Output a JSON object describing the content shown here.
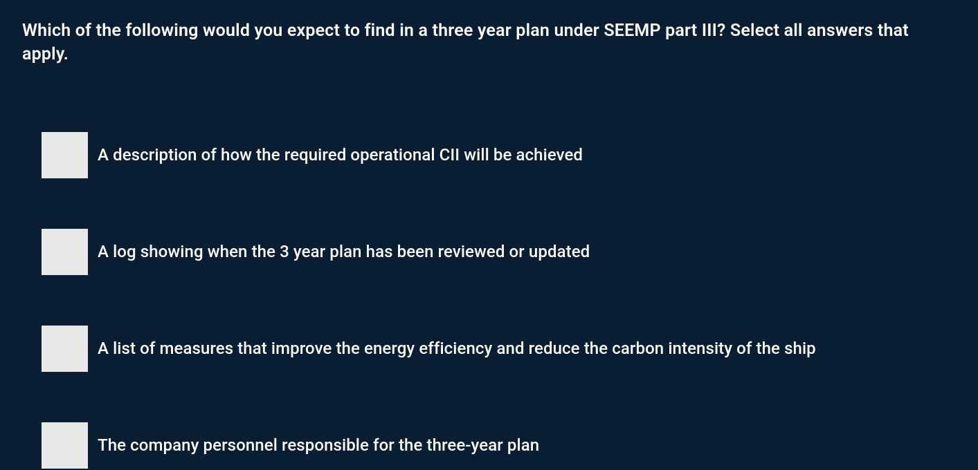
{
  "question": {
    "text": "Which of the following would you expect to find in a three year plan under SEEMP part III? Select all answers that apply."
  },
  "options": [
    {
      "label": "A description of how the required operational CII will be achieved",
      "checked": false
    },
    {
      "label": "A log showing when the 3 year plan has been reviewed or updated",
      "checked": false
    },
    {
      "label": "A list of measures that improve the energy efficiency and reduce the carbon intensity of the ship",
      "checked": false
    },
    {
      "label": "The company personnel responsible for the three-year plan",
      "checked": false
    }
  ],
  "colors": {
    "background": "#0a1e33",
    "text": "#ffffff",
    "checkbox_bg": "#e8e8e8"
  },
  "typography": {
    "question_fontsize": 25,
    "question_fontweight": 600,
    "option_fontsize": 24,
    "option_fontweight": 500
  },
  "layout": {
    "checkbox_size": 67,
    "option_gap": 73,
    "options_top_margin": 95,
    "options_left_padding": 28
  }
}
